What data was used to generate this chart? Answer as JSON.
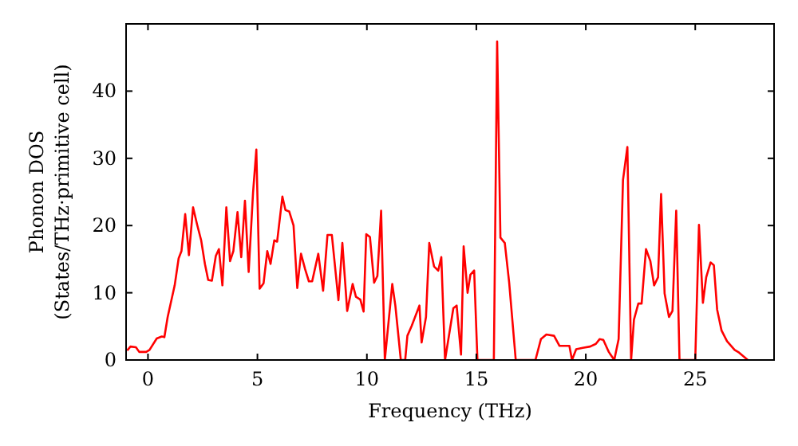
{
  "chart_data": {
    "type": "line",
    "xlabel": "Frequency (THz)",
    "ylabel": "Phonon DOS\n(States/THz·primitive cell)",
    "xlim": [
      -1,
      28.6
    ],
    "ylim": [
      0,
      50
    ],
    "xticks": [
      0,
      5,
      10,
      15,
      20,
      25
    ],
    "yticks": [
      0,
      10,
      20,
      30,
      40
    ],
    "grid": false,
    "marker": "none",
    "line_style": "solid",
    "series": [
      {
        "color": "#ff0000",
        "x": [
          -0.95,
          -0.8,
          -0.55,
          -0.4,
          -0.08,
          0.07,
          0.4,
          0.63,
          0.75,
          0.9,
          1.22,
          1.4,
          1.53,
          1.7,
          1.87,
          2.06,
          2.24,
          2.43,
          2.6,
          2.75,
          2.92,
          3.1,
          3.24,
          3.4,
          3.58,
          3.75,
          3.9,
          4.09,
          4.26,
          4.43,
          4.6,
          4.8,
          4.95,
          5.1,
          5.28,
          5.45,
          5.6,
          5.77,
          5.9,
          6.14,
          6.28,
          6.45,
          6.65,
          6.82,
          6.99,
          7.18,
          7.35,
          7.5,
          7.78,
          8.0,
          8.2,
          8.4,
          8.7,
          8.88,
          9.1,
          9.35,
          9.5,
          9.7,
          9.85,
          9.97,
          10.14,
          10.33,
          10.48,
          10.65,
          10.82,
          11.16,
          11.3,
          11.55,
          11.75,
          11.85,
          12.05,
          12.4,
          12.5,
          12.7,
          12.85,
          13.07,
          13.26,
          13.4,
          13.57,
          13.95,
          14.1,
          14.3,
          14.42,
          14.6,
          14.73,
          14.9,
          15.05,
          15.8,
          15.95,
          16.1,
          16.3,
          16.5,
          16.8,
          17.7,
          17.95,
          18.2,
          18.55,
          18.8,
          19.05,
          19.25,
          19.37,
          19.56,
          19.86,
          20.2,
          20.46,
          20.63,
          20.8,
          21.05,
          21.3,
          21.5,
          21.7,
          21.9,
          22.07,
          22.2,
          22.4,
          22.55,
          22.75,
          22.95,
          23.12,
          23.3,
          23.44,
          23.6,
          23.8,
          23.96,
          24.13,
          24.28,
          25.0,
          25.17,
          25.35,
          25.5,
          25.7,
          25.85,
          26.0,
          26.2,
          26.45,
          26.8,
          27.0,
          27.4
        ],
        "values": [
          1.4,
          2.0,
          1.9,
          1.2,
          1.2,
          1.5,
          3.2,
          3.5,
          3.4,
          6.4,
          11.1,
          15.1,
          16.2,
          21.7,
          15.6,
          22.7,
          20.2,
          17.8,
          14.3,
          11.9,
          11.8,
          15.5,
          16.5,
          11.1,
          22.7,
          14.7,
          16.2,
          22.0,
          15.3,
          23.7,
          13.1,
          24.9,
          31.3,
          10.6,
          11.4,
          16.2,
          14.3,
          17.8,
          17.6,
          24.3,
          22.3,
          22.1,
          20.0,
          10.7,
          15.8,
          13.5,
          11.7,
          11.7,
          15.8,
          10.3,
          18.6,
          18.6,
          8.9,
          17.4,
          7.3,
          11.3,
          9.4,
          9.0,
          7.2,
          18.7,
          18.3,
          11.5,
          12.5,
          22.2,
          0,
          11.3,
          8.1,
          0,
          0,
          3.6,
          5.1,
          8.1,
          2.6,
          6.4,
          17.4,
          13.9,
          13.3,
          15.3,
          0,
          7.7,
          8.1,
          0.8,
          16.9,
          10.0,
          12.7,
          13.3,
          0,
          0,
          47.4,
          18.2,
          17.4,
          11.5,
          0,
          0,
          3.1,
          3.8,
          3.6,
          2.1,
          2.1,
          2.1,
          0,
          1.6,
          1.8,
          2.0,
          2.4,
          3.1,
          3.0,
          1.2,
          0,
          3.1,
          26.8,
          31.7,
          0,
          6.0,
          8.4,
          8.4,
          16.5,
          14.7,
          11.1,
          12.3,
          24.7,
          9.9,
          6.4,
          7.3,
          22.2,
          0,
          0,
          20.1,
          8.5,
          12.3,
          14.5,
          14.1,
          7.5,
          4.4,
          2.8,
          1.5,
          1.1,
          0
        ]
      }
    ]
  }
}
